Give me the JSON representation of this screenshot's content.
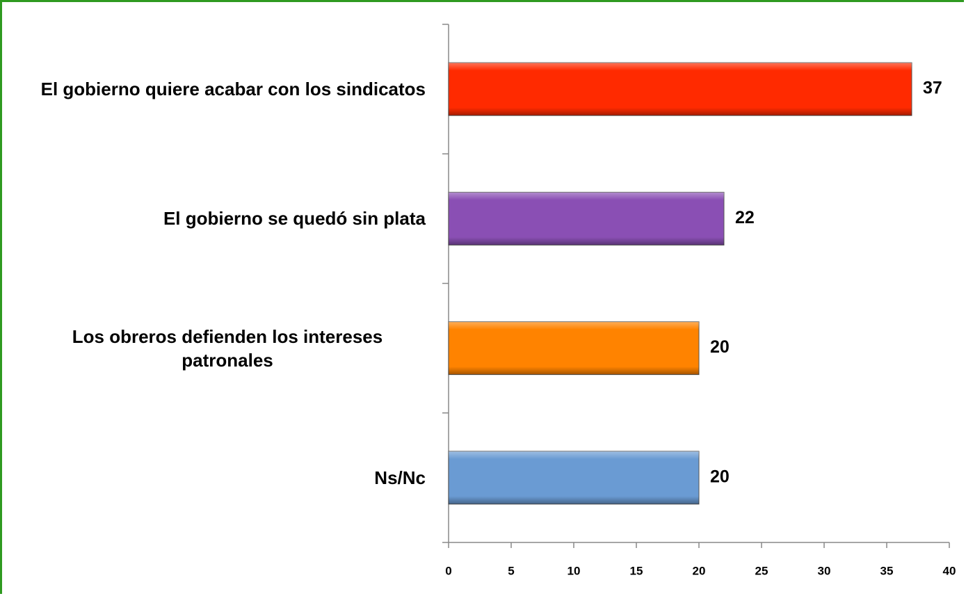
{
  "chart_data": {
    "type": "barh",
    "categories": [
      "El gobierno quiere acabar con los sindicatos",
      "El gobierno se quedó sin plata",
      "Los obreros defienden los intereses patronales",
      "Ns/Nc"
    ],
    "values": [
      37,
      22,
      20,
      20
    ],
    "colors": [
      "#ff2a00",
      "#8a4fb4",
      "#ff8300",
      "#6a9bd3"
    ],
    "xlim": [
      0,
      40
    ],
    "xticks": [
      0,
      5,
      10,
      15,
      20,
      25,
      30,
      35,
      40
    ]
  }
}
